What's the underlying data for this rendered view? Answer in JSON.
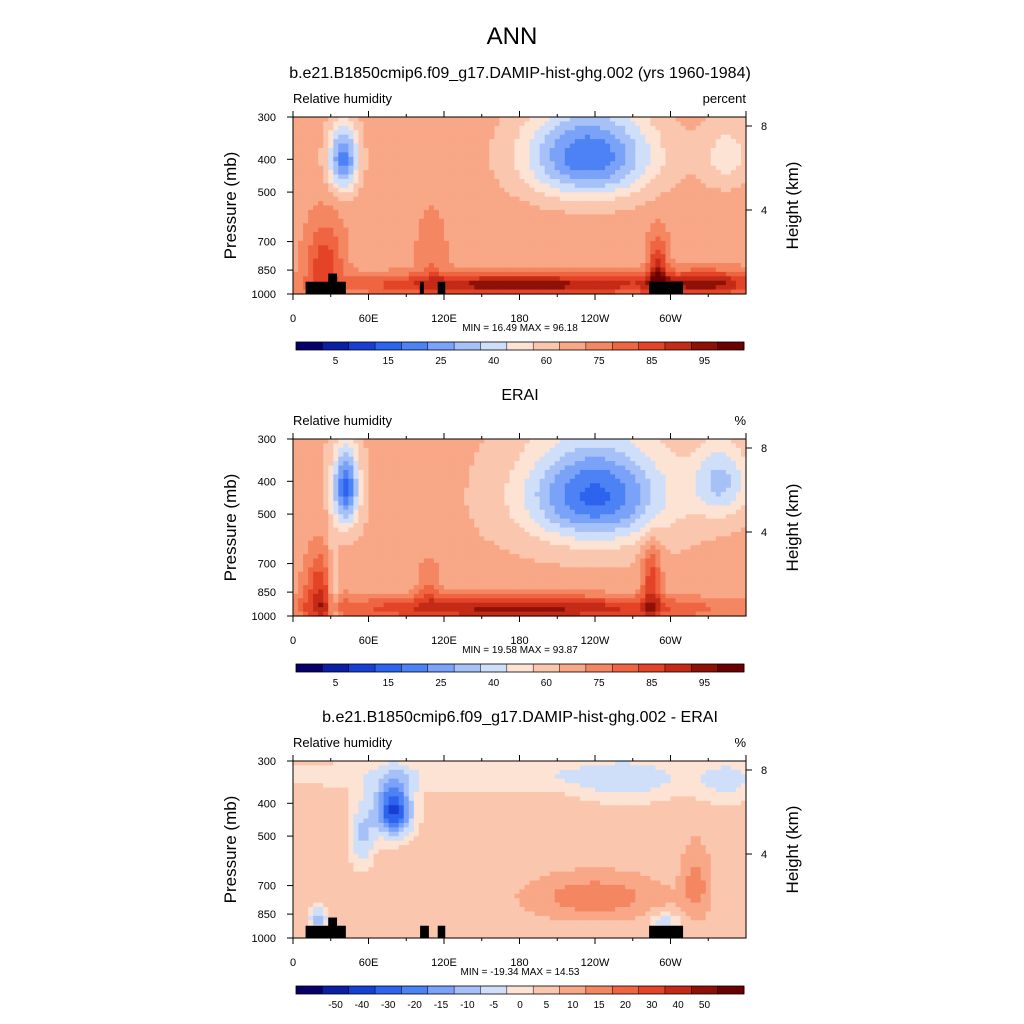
{
  "figure": {
    "title": "ANN"
  },
  "chart_data": [
    {
      "type": "heatmap",
      "title": "b.e21.B1850cmip6.f09_g17.DAMIP-hist-ghg.002 (yrs 1960-1984)",
      "left_label": "Relative humidity",
      "right_label": "percent",
      "ylabel": "Pressure (mb)",
      "ylabel_right": "Height (km)",
      "xlim": [
        0,
        360
      ],
      "x_ticks": [
        {
          "v": 0,
          "l": "0"
        },
        {
          "v": 60,
          "l": "60E"
        },
        {
          "v": 120,
          "l": "120E"
        },
        {
          "v": 180,
          "l": "180"
        },
        {
          "v": 240,
          "l": "120W"
        },
        {
          "v": 300,
          "l": "60W"
        }
      ],
      "y_ticks": [
        {
          "v": 300,
          "l": "300"
        },
        {
          "v": 400,
          "l": "400"
        },
        {
          "v": 500,
          "l": "500"
        },
        {
          "v": 700,
          "l": "700"
        },
        {
          "v": 850,
          "l": "850"
        },
        {
          "v": 1000,
          "l": "1000"
        }
      ],
      "height_ticks": [
        {
          "v": 8,
          "l": "8"
        },
        {
          "v": 4,
          "l": "4"
        }
      ],
      "min_max": "MIN =  16.49  MAX =  96.18",
      "colorbar": {
        "colors": [
          "#08006a",
          "#0a1fa5",
          "#173fd4",
          "#2d63ed",
          "#4d82f5",
          "#7aa2f8",
          "#a6c0f8",
          "#cfdef9",
          "#fde3d4",
          "#fbc6ae",
          "#f8a787",
          "#f48762",
          "#ef6542",
          "#e34428",
          "#c42b16",
          "#8e1107",
          "#6a0000"
        ],
        "tick_labels": [
          {
            "i": 1,
            "l": "5"
          },
          {
            "i": 3,
            "l": "15"
          },
          {
            "i": 5,
            "l": "25"
          },
          {
            "i": 7,
            "l": "40"
          },
          {
            "i": 9,
            "l": "60"
          },
          {
            "i": 11,
            "l": "75"
          },
          {
            "i": 13,
            "l": "85"
          },
          {
            "i": 15,
            "l": "95"
          }
        ]
      },
      "field": {
        "base": 62,
        "blobs": [
          {
            "x": 40,
            "p": 400,
            "sx": 12,
            "sp": 90,
            "a": -35
          },
          {
            "x": 235,
            "p": 390,
            "sx": 50,
            "sp": 120,
            "a": -38
          },
          {
            "x": 345,
            "p": 390,
            "sx": 20,
            "sp": 90,
            "a": -12
          },
          {
            "x": 180,
            "p": 940,
            "sx": 130,
            "sp": 70,
            "a": 30
          },
          {
            "x": 290,
            "p": 850,
            "sx": 8,
            "sp": 180,
            "a": 22
          },
          {
            "x": 25,
            "p": 800,
            "sx": 15,
            "sp": 200,
            "a": 18
          },
          {
            "x": 110,
            "p": 760,
            "sx": 12,
            "sp": 200,
            "a": 8
          },
          {
            "x": 330,
            "p": 930,
            "sx": 40,
            "sp": 80,
            "a": 22
          }
        ]
      },
      "topography": [
        {
          "x0": 10,
          "x1": 42,
          "p": 920
        },
        {
          "x0": 28,
          "x1": 35,
          "p": 870
        },
        {
          "x0": 101,
          "x1": 104,
          "p": 920
        },
        {
          "x0": 115,
          "x1": 121,
          "p": 920
        },
        {
          "x0": 283,
          "x1": 310,
          "p": 920
        }
      ]
    },
    {
      "type": "heatmap",
      "title": "ERAI",
      "left_label": "Relative humidity",
      "right_label": "%",
      "ylabel": "Pressure (mb)",
      "ylabel_right": "Height (km)",
      "xlim": [
        0,
        360
      ],
      "x_ticks": [
        {
          "v": 0,
          "l": "0"
        },
        {
          "v": 60,
          "l": "60E"
        },
        {
          "v": 120,
          "l": "120E"
        },
        {
          "v": 180,
          "l": "180"
        },
        {
          "v": 240,
          "l": "120W"
        },
        {
          "v": 300,
          "l": "60W"
        }
      ],
      "y_ticks": [
        {
          "v": 300,
          "l": "300"
        },
        {
          "v": 400,
          "l": "400"
        },
        {
          "v": 500,
          "l": "500"
        },
        {
          "v": 700,
          "l": "700"
        },
        {
          "v": 850,
          "l": "850"
        },
        {
          "v": 1000,
          "l": "1000"
        }
      ],
      "height_ticks": [
        {
          "v": 8,
          "l": "8"
        },
        {
          "v": 4,
          "l": "4"
        }
      ],
      "min_max": "MIN =  19.58  MAX =  93.87",
      "colorbar": {
        "colors": [
          "#08006a",
          "#0a1fa5",
          "#173fd4",
          "#2d63ed",
          "#4d82f5",
          "#7aa2f8",
          "#a6c0f8",
          "#cfdef9",
          "#fde3d4",
          "#fbc6ae",
          "#f8a787",
          "#f48762",
          "#ef6542",
          "#e34428",
          "#c42b16",
          "#8e1107",
          "#6a0000"
        ],
        "tick_labels": [
          {
            "i": 1,
            "l": "5"
          },
          {
            "i": 3,
            "l": "15"
          },
          {
            "i": 5,
            "l": "25"
          },
          {
            "i": 7,
            "l": "40"
          },
          {
            "i": 9,
            "l": "60"
          },
          {
            "i": 11,
            "l": "75"
          },
          {
            "i": 13,
            "l": "85"
          },
          {
            "i": 15,
            "l": "95"
          }
        ]
      },
      "field": {
        "base": 60,
        "blobs": [
          {
            "x": 42,
            "p": 420,
            "sx": 10,
            "sp": 110,
            "a": -38
          },
          {
            "x": 240,
            "p": 440,
            "sx": 55,
            "sp": 150,
            "a": -38
          },
          {
            "x": 340,
            "p": 400,
            "sx": 22,
            "sp": 100,
            "a": -20
          },
          {
            "x": 180,
            "p": 950,
            "sx": 150,
            "sp": 80,
            "a": 30
          },
          {
            "x": 285,
            "p": 800,
            "sx": 8,
            "sp": 200,
            "a": 20
          },
          {
            "x": 22,
            "p": 850,
            "sx": 14,
            "sp": 220,
            "a": 22
          },
          {
            "x": 108,
            "p": 800,
            "sx": 10,
            "sp": 150,
            "a": 10
          },
          {
            "x": 32,
            "p": 900,
            "sx": 5,
            "sp": 300,
            "a": -18
          }
        ]
      },
      "topography": []
    },
    {
      "type": "heatmap",
      "title": "b.e21.B1850cmip6.f09_g17.DAMIP-hist-ghg.002 - ERAI",
      "left_label": "Relative humidity",
      "right_label": "%",
      "ylabel": "Pressure (mb)",
      "ylabel_right": "Height (km)",
      "xlim": [
        0,
        360
      ],
      "x_ticks": [
        {
          "v": 0,
          "l": "0"
        },
        {
          "v": 60,
          "l": "60E"
        },
        {
          "v": 120,
          "l": "120E"
        },
        {
          "v": 180,
          "l": "180"
        },
        {
          "v": 240,
          "l": "120W"
        },
        {
          "v": 300,
          "l": "60W"
        }
      ],
      "y_ticks": [
        {
          "v": 300,
          "l": "300"
        },
        {
          "v": 400,
          "l": "400"
        },
        {
          "v": 500,
          "l": "500"
        },
        {
          "v": 700,
          "l": "700"
        },
        {
          "v": 850,
          "l": "850"
        },
        {
          "v": 1000,
          "l": "1000"
        }
      ],
      "height_ticks": [
        {
          "v": 8,
          "l": "8"
        },
        {
          "v": 4,
          "l": "4"
        }
      ],
      "min_max": "MIN = -19.34  MAX =  14.53",
      "colorbar": {
        "colors": [
          "#08006a",
          "#0a1fa5",
          "#173fd4",
          "#2d63ed",
          "#4d82f5",
          "#7aa2f8",
          "#a6c0f8",
          "#cfdef9",
          "#fde3d4",
          "#fbc6ae",
          "#f8a787",
          "#f48762",
          "#ef6542",
          "#e34428",
          "#c42b16",
          "#8e1107",
          "#6a0000"
        ],
        "tick_labels": [
          {
            "i": 1,
            "l": "-50"
          },
          {
            "i": 2,
            "l": "-40"
          },
          {
            "i": 3,
            "l": "-30"
          },
          {
            "i": 4,
            "l": "-20"
          },
          {
            "i": 5,
            "l": "-15"
          },
          {
            "i": 6,
            "l": "-10"
          },
          {
            "i": 7,
            "l": "-5"
          },
          {
            "i": 8,
            "l": "0"
          },
          {
            "i": 9,
            "l": "5"
          },
          {
            "i": 10,
            "l": "10"
          },
          {
            "i": 11,
            "l": "15"
          },
          {
            "i": 12,
            "l": "20"
          },
          {
            "i": 13,
            "l": "30"
          },
          {
            "i": 14,
            "l": "40"
          },
          {
            "i": 15,
            "l": "50"
          }
        ]
      },
      "field": {
        "base": 3,
        "blobs": [
          {
            "x": 165,
            "p": 330,
            "sx": 200,
            "sp": 40,
            "a": -4
          },
          {
            "x": 80,
            "p": 420,
            "sx": 15,
            "sp": 80,
            "a": -18
          },
          {
            "x": 55,
            "p": 500,
            "sx": 10,
            "sp": 120,
            "a": -7
          },
          {
            "x": 265,
            "p": 350,
            "sx": 40,
            "sp": 60,
            "a": -4
          },
          {
            "x": 345,
            "p": 350,
            "sx": 25,
            "sp": 60,
            "a": -4
          },
          {
            "x": 240,
            "p": 760,
            "sx": 45,
            "sp": 100,
            "a": 6
          },
          {
            "x": 20,
            "p": 880,
            "sx": 8,
            "sp": 80,
            "a": -8
          },
          {
            "x": 295,
            "p": 900,
            "sx": 12,
            "sp": 60,
            "a": -6
          },
          {
            "x": 320,
            "p": 700,
            "sx": 10,
            "sp": 150,
            "a": 5
          }
        ]
      },
      "topography": [
        {
          "x0": 10,
          "x1": 42,
          "p": 920
        },
        {
          "x0": 28,
          "x1": 35,
          "p": 870
        },
        {
          "x0": 101,
          "x1": 108,
          "p": 920
        },
        {
          "x0": 115,
          "x1": 121,
          "p": 920
        },
        {
          "x0": 283,
          "x1": 310,
          "p": 920
        }
      ]
    }
  ]
}
